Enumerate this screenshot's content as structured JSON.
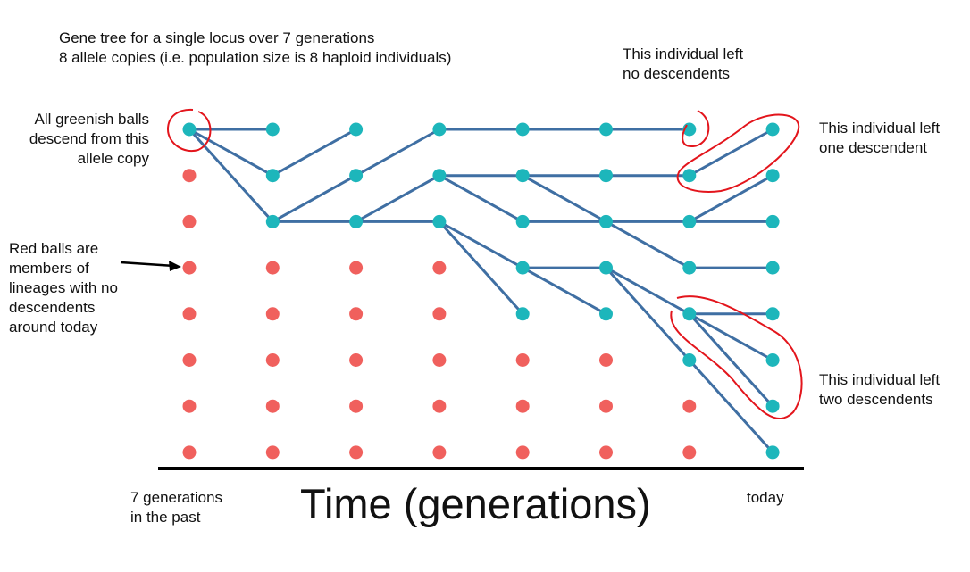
{
  "title": {
    "line1": "Gene tree for a single locus over 7 generations",
    "line2": "8 allele copies (i.e. population size is 8 haploid individuals)"
  },
  "notes": {
    "green_line1": "All greenish balls",
    "green_line2": "descend from this",
    "green_line3": "allele copy",
    "red_line1": "Red balls are",
    "red_line2": "members of",
    "red_line3": "lineages with no",
    "red_line4": "descendents",
    "red_line5": "around today",
    "no_desc_line1": "This individual left",
    "no_desc_line2": "no descendents",
    "one_desc_line1": "This individual left",
    "one_desc_line2": "one descendent",
    "two_desc_line1": "This individual left",
    "two_desc_line2": "two descendents"
  },
  "axis": {
    "title": "Time (generations)",
    "past_line1": "7 generations",
    "past_line2": "in the past",
    "today": "today"
  },
  "colors": {
    "teal": "#1db6bb",
    "red": "#f0605d",
    "line": "#3f6fa3",
    "circle": "#e3151c",
    "axis": "#000000"
  },
  "grid": {
    "generations": 8,
    "individuals": 8,
    "teal_nodes": [
      [
        0,
        0
      ],
      [
        1,
        0
      ],
      [
        1,
        1
      ],
      [
        1,
        2
      ],
      [
        2,
        0
      ],
      [
        2,
        1
      ],
      [
        2,
        2
      ],
      [
        3,
        0
      ],
      [
        3,
        1
      ],
      [
        3,
        2
      ],
      [
        4,
        0
      ],
      [
        4,
        1
      ],
      [
        4,
        2
      ],
      [
        4,
        3
      ],
      [
        4,
        4
      ],
      [
        5,
        0
      ],
      [
        5,
        1
      ],
      [
        5,
        2
      ],
      [
        5,
        3
      ],
      [
        5,
        4
      ],
      [
        6,
        0
      ],
      [
        6,
        1
      ],
      [
        6,
        2
      ],
      [
        6,
        3
      ],
      [
        6,
        4
      ],
      [
        6,
        5
      ],
      [
        7,
        0
      ],
      [
        7,
        1
      ],
      [
        7,
        2
      ],
      [
        7,
        3
      ],
      [
        7,
        4
      ],
      [
        7,
        5
      ],
      [
        7,
        6
      ],
      [
        7,
        7
      ]
    ],
    "edges": [
      [
        [
          0,
          0
        ],
        [
          1,
          0
        ]
      ],
      [
        [
          0,
          0
        ],
        [
          1,
          1
        ]
      ],
      [
        [
          0,
          0
        ],
        [
          1,
          2
        ]
      ],
      [
        [
          1,
          1
        ],
        [
          2,
          0
        ]
      ],
      [
        [
          1,
          2
        ],
        [
          2,
          1
        ]
      ],
      [
        [
          1,
          2
        ],
        [
          2,
          2
        ]
      ],
      [
        [
          2,
          1
        ],
        [
          3,
          0
        ]
      ],
      [
        [
          2,
          2
        ],
        [
          3,
          1
        ]
      ],
      [
        [
          2,
          2
        ],
        [
          3,
          2
        ]
      ],
      [
        [
          3,
          0
        ],
        [
          4,
          0
        ]
      ],
      [
        [
          3,
          1
        ],
        [
          4,
          1
        ]
      ],
      [
        [
          3,
          1
        ],
        [
          4,
          2
        ]
      ],
      [
        [
          3,
          2
        ],
        [
          4,
          3
        ]
      ],
      [
        [
          3,
          2
        ],
        [
          4,
          4
        ]
      ],
      [
        [
          4,
          0
        ],
        [
          5,
          0
        ]
      ],
      [
        [
          4,
          1
        ],
        [
          5,
          1
        ]
      ],
      [
        [
          4,
          1
        ],
        [
          5,
          2
        ]
      ],
      [
        [
          4,
          2
        ],
        [
          5,
          2
        ]
      ],
      [
        [
          4,
          3
        ],
        [
          5,
          3
        ]
      ],
      [
        [
          4,
          3
        ],
        [
          5,
          4
        ]
      ],
      [
        [
          5,
          0
        ],
        [
          6,
          0
        ]
      ],
      [
        [
          5,
          1
        ],
        [
          6,
          1
        ]
      ],
      [
        [
          5,
          2
        ],
        [
          6,
          2
        ]
      ],
      [
        [
          5,
          2
        ],
        [
          6,
          3
        ]
      ],
      [
        [
          5,
          3
        ],
        [
          6,
          4
        ]
      ],
      [
        [
          5,
          3
        ],
        [
          6,
          5
        ]
      ],
      [
        [
          6,
          1
        ],
        [
          7,
          0
        ]
      ],
      [
        [
          6,
          2
        ],
        [
          7,
          1
        ]
      ],
      [
        [
          6,
          2
        ],
        [
          7,
          2
        ]
      ],
      [
        [
          6,
          3
        ],
        [
          7,
          3
        ]
      ],
      [
        [
          6,
          4
        ],
        [
          7,
          4
        ]
      ],
      [
        [
          6,
          4
        ],
        [
          7,
          5
        ]
      ],
      [
        [
          6,
          4
        ],
        [
          7,
          6
        ]
      ],
      [
        [
          6,
          5
        ],
        [
          7,
          7
        ]
      ]
    ]
  }
}
